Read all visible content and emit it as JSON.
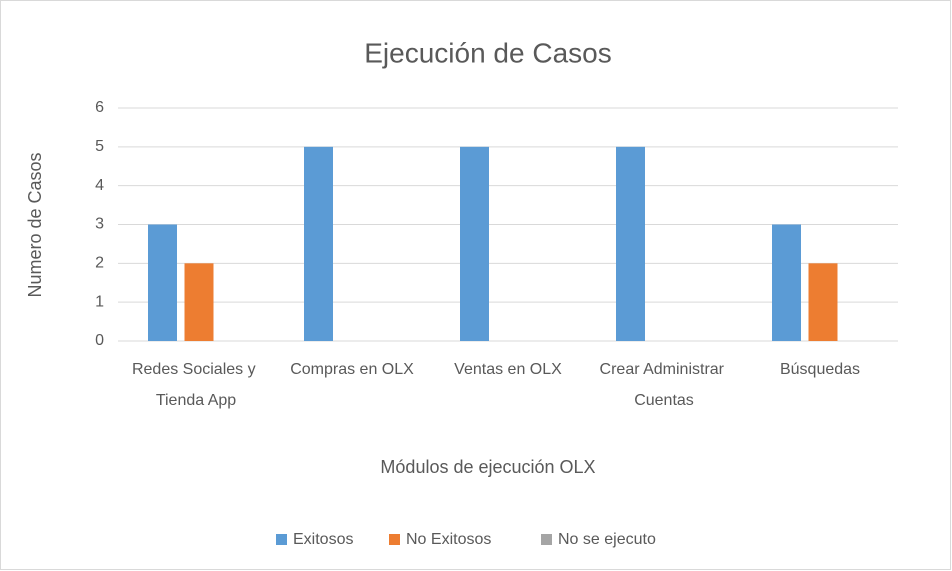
{
  "chart_data": {
    "type": "bar",
    "title": "Ejecución de Casos",
    "x_label": "Módulos de ejecución OLX",
    "y_label": "Numero de Casos",
    "categories": [
      "Redes Sociales y Tienda App",
      "Compras en OLX",
      "Ventas en OLX",
      "Crear Administrar Cuentas",
      "Búsquedas"
    ],
    "series": [
      {
        "name": "Exitosos",
        "color": "#5b9bd5",
        "values": [
          3,
          5,
          5,
          5,
          3
        ]
      },
      {
        "name": "No Exitosos",
        "color": "#ed7d31",
        "values": [
          2,
          0,
          0,
          0,
          2
        ]
      },
      {
        "name": "No se ejecuto",
        "color": "#a5a5a5",
        "values": [
          0,
          0,
          0,
          0,
          0
        ]
      }
    ],
    "ylim": [
      0,
      6
    ],
    "yticks": [
      0,
      1,
      2,
      3,
      4,
      5,
      6
    ],
    "grid": true,
    "legend": "bottom"
  }
}
